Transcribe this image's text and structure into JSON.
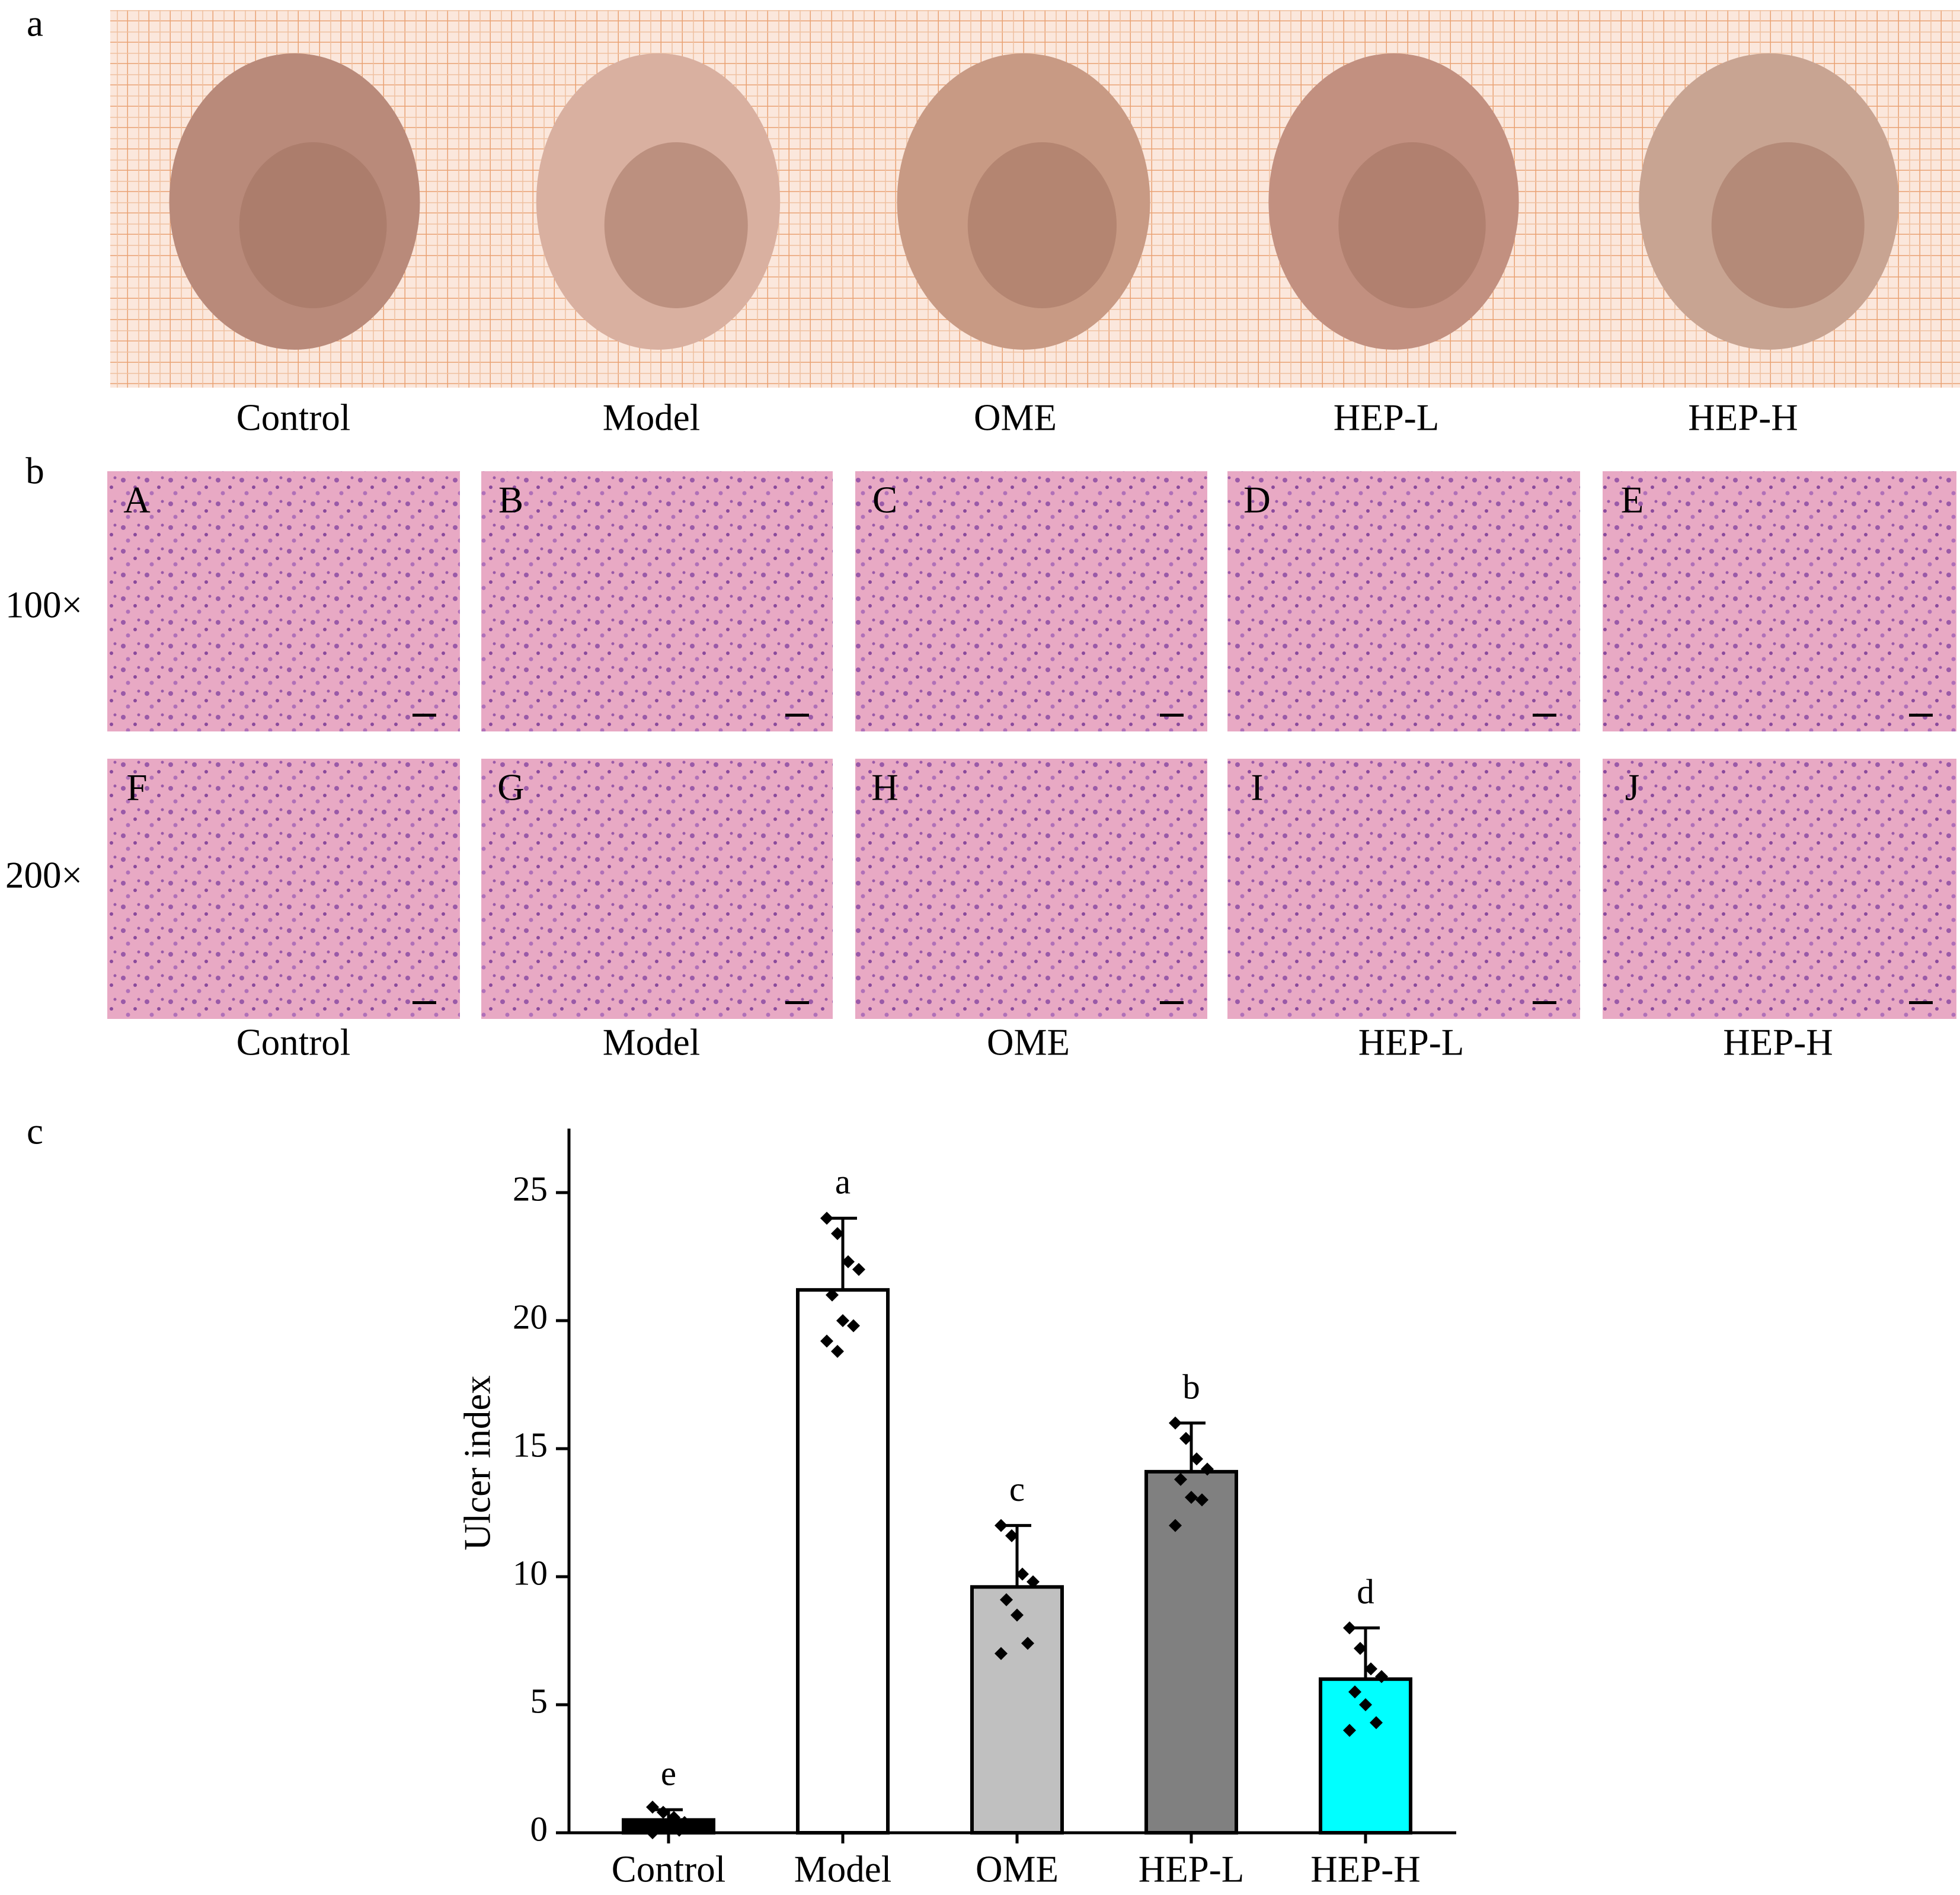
{
  "panel_a": {
    "label": "a",
    "groups": [
      "Control",
      "Model",
      "OME",
      "HEP-L",
      "HEP-H"
    ]
  },
  "panel_b": {
    "label": "b",
    "rows": [
      {
        "magnification": "100×",
        "letters": [
          "A",
          "B",
          "C",
          "D",
          "E"
        ]
      },
      {
        "magnification": "200×",
        "letters": [
          "F",
          "G",
          "H",
          "I",
          "J"
        ]
      }
    ],
    "groups": [
      "Control",
      "Model",
      "OME",
      "HEP-L",
      "HEP-H"
    ]
  },
  "chart_data": {
    "type": "bar",
    "panel_label": "c",
    "y_label": "Ulcer index",
    "categories": [
      "Control",
      "Model",
      "OME",
      "HEP-L",
      "HEP-H"
    ],
    "values": [
      0.5,
      21.2,
      9.6,
      14.1,
      6.0
    ],
    "errors": [
      0.4,
      2.8,
      2.4,
      1.9,
      2.0
    ],
    "colors": [
      "#000000",
      "#ffffff",
      "#c0c0c0",
      "#808080",
      "#00ffff"
    ],
    "annotations": [
      "e",
      "a",
      "c",
      "b",
      "d"
    ],
    "points": [
      [
        1.0,
        0.8,
        0.6,
        0.4,
        0.3,
        0.2,
        0.1,
        0.0
      ],
      [
        24.0,
        23.4,
        22.3,
        22.0,
        21.0,
        20.0,
        19.8,
        19.2,
        18.8
      ],
      [
        12.0,
        11.6,
        10.1,
        9.8,
        9.1,
        8.5,
        7.4,
        7.0
      ],
      [
        16.0,
        15.4,
        14.6,
        14.2,
        13.8,
        13.1,
        13.0,
        12.0
      ],
      [
        8.0,
        7.2,
        6.4,
        6.1,
        5.5,
        5.0,
        4.3,
        4.0
      ]
    ],
    "ylim": [
      0,
      27.5
    ],
    "yticks": [
      0,
      5,
      10,
      15,
      20,
      25
    ]
  }
}
